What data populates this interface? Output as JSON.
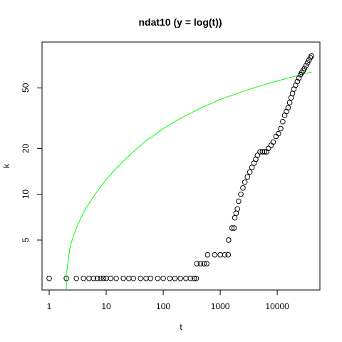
{
  "chart_data": {
    "type": "scatter",
    "title": "ndat10 (y = log(t))",
    "xlabel": "t",
    "ylabel": "k",
    "x_scale": "log",
    "y_scale": "log",
    "xlim": [
      0.75,
      56000
    ],
    "ylim": [
      2.35,
      100
    ],
    "x_ticks": [
      1,
      10,
      100,
      1000,
      10000
    ],
    "x_tick_labels": [
      "1",
      "10",
      "100",
      "1000",
      "10000"
    ],
    "y_ticks": [
      5,
      10,
      20,
      50
    ],
    "y_tick_labels": [
      "5",
      "10",
      "20",
      "50"
    ],
    "grid": false,
    "legend": "none",
    "series": [
      {
        "type": "points",
        "marker": "open-circle",
        "color": "#000000",
        "points": [
          [
            1,
            2.8
          ],
          [
            2,
            2.8
          ],
          [
            3,
            2.8
          ],
          [
            4,
            2.8
          ],
          [
            5,
            2.8
          ],
          [
            6,
            2.8
          ],
          [
            7,
            2.8
          ],
          [
            8,
            2.8
          ],
          [
            9,
            2.8
          ],
          [
            10,
            2.8
          ],
          [
            12,
            2.8
          ],
          [
            15,
            2.8
          ],
          [
            20,
            2.8
          ],
          [
            25,
            2.8
          ],
          [
            30,
            2.8
          ],
          [
            40,
            2.8
          ],
          [
            50,
            2.8
          ],
          [
            60,
            2.8
          ],
          [
            80,
            2.8
          ],
          [
            100,
            2.8
          ],
          [
            130,
            2.8
          ],
          [
            160,
            2.8
          ],
          [
            200,
            2.8
          ],
          [
            250,
            2.8
          ],
          [
            300,
            2.8
          ],
          [
            350,
            2.8
          ],
          [
            380,
            2.8
          ],
          [
            390,
            3.5
          ],
          [
            450,
            3.5
          ],
          [
            520,
            3.5
          ],
          [
            580,
            3.5
          ],
          [
            600,
            4
          ],
          [
            800,
            4
          ],
          [
            1000,
            4
          ],
          [
            1200,
            4
          ],
          [
            1380,
            4
          ],
          [
            1400,
            5
          ],
          [
            1600,
            6
          ],
          [
            1750,
            6
          ],
          [
            1800,
            7
          ],
          [
            1900,
            7.5
          ],
          [
            2000,
            8
          ],
          [
            2100,
            9
          ],
          [
            2300,
            10
          ],
          [
            2500,
            11
          ],
          [
            2700,
            12
          ],
          [
            3000,
            13
          ],
          [
            3300,
            14
          ],
          [
            3600,
            15
          ],
          [
            3900,
            16
          ],
          [
            4200,
            17
          ],
          [
            4500,
            18
          ],
          [
            5000,
            19
          ],
          [
            5500,
            19
          ],
          [
            6000,
            19
          ],
          [
            6500,
            19
          ],
          [
            7000,
            20
          ],
          [
            7800,
            21
          ],
          [
            8500,
            22
          ],
          [
            9500,
            24
          ],
          [
            10500,
            25
          ],
          [
            11500,
            27
          ],
          [
            12500,
            30
          ],
          [
            13500,
            33
          ],
          [
            14500,
            35
          ],
          [
            15500,
            37
          ],
          [
            16500,
            40
          ],
          [
            17500,
            43
          ],
          [
            18500,
            46
          ],
          [
            19500,
            49
          ],
          [
            21000,
            52
          ],
          [
            22500,
            55
          ],
          [
            24000,
            58
          ],
          [
            25500,
            61
          ],
          [
            27000,
            63
          ],
          [
            28500,
            65
          ],
          [
            30000,
            67
          ],
          [
            32000,
            70
          ],
          [
            34000,
            73
          ],
          [
            36000,
            76
          ],
          [
            38000,
            79
          ],
          [
            40000,
            81
          ]
        ]
      },
      {
        "type": "line",
        "name": "",
        "function": "y = log(t)",
        "color": "#00ff00",
        "points": [
          [
            2,
            2.35
          ],
          [
            2,
            3.0
          ],
          [
            2.05,
            3.2
          ],
          [
            2.3,
            4.4
          ],
          [
            2.6,
            5.2
          ],
          [
            3,
            6.0
          ],
          [
            4,
            7.6
          ],
          [
            5,
            8.7
          ],
          [
            7,
            10.5
          ],
          [
            10,
            12.5
          ],
          [
            15,
            14.8
          ],
          [
            20,
            16.5
          ],
          [
            30,
            19.0
          ],
          [
            50,
            22.5
          ],
          [
            70,
            24.5
          ],
          [
            100,
            27.0
          ],
          [
            200,
            31.5
          ],
          [
            300,
            34.0
          ],
          [
            500,
            37.5
          ],
          [
            700,
            39.5
          ],
          [
            1000,
            42.0
          ],
          [
            2000,
            46.0
          ],
          [
            3000,
            48.5
          ],
          [
            5000,
            51.5
          ],
          [
            10000,
            55.5
          ],
          [
            20000,
            59.5
          ],
          [
            40000,
            63.5
          ]
        ]
      }
    ]
  }
}
